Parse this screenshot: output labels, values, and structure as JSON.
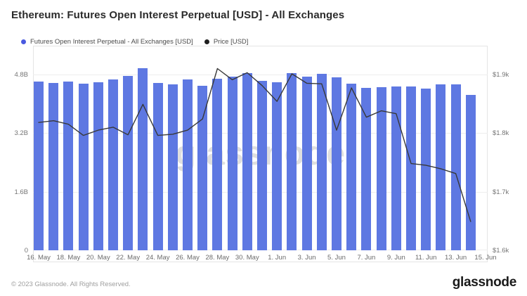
{
  "title": "Ethereum: Futures Open Interest Perpetual [USD] - All Exchanges",
  "legend": {
    "items": [
      {
        "label": "Futures Open Interest Perpetual - All Exchanges [USD]",
        "color": "#4a5ae0"
      },
      {
        "label": "Price [USD]",
        "color": "#1f1f1f"
      }
    ]
  },
  "watermark": "glassnode",
  "footer": {
    "copyright": "© 2023 Glassnode. All Rights Reserved.",
    "brand": "glassnode"
  },
  "colors": {
    "bar": "#5e78e2",
    "price_line": "#383838",
    "grid": "#ededed",
    "frame": "#e4e4e4"
  },
  "chart_data": {
    "type": "combo",
    "dates": [
      "16. May",
      "17. May",
      "18. May",
      "19. May",
      "20. May",
      "21. May",
      "22. May",
      "23. May",
      "24. May",
      "25. May",
      "26. May",
      "27. May",
      "28. May",
      "29. May",
      "30. May",
      "31. May",
      "1. Jun",
      "2. Jun",
      "3. Jun",
      "4. Jun",
      "5. Jun",
      "6. Jun",
      "7. Jun",
      "8. Jun",
      "9. Jun",
      "10. Jun",
      "11. Jun",
      "12. Jun",
      "13. Jun",
      "14. Jun"
    ],
    "series": [
      {
        "name": "Futures Open Interest Perpetual - All Exchanges [USD]",
        "type": "bar",
        "unit": "billion USD",
        "values": [
          4.62,
          4.58,
          4.62,
          4.55,
          4.6,
          4.66,
          4.77,
          4.98,
          4.58,
          4.53,
          4.66,
          4.5,
          4.69,
          4.74,
          4.85,
          4.64,
          4.6,
          4.84,
          4.74,
          4.82,
          4.72,
          4.55,
          4.43,
          4.45,
          4.48,
          4.47,
          4.42,
          4.53,
          4.54,
          4.24
        ]
      },
      {
        "name": "Price [USD]",
        "type": "line",
        "unit": "USD",
        "values": [
          1818,
          1821,
          1815,
          1796,
          1805,
          1810,
          1797,
          1849,
          1796,
          1798,
          1805,
          1824,
          1910,
          1891,
          1903,
          1881,
          1854,
          1901,
          1885,
          1884,
          1805,
          1877,
          1827,
          1838,
          1833,
          1748,
          1745,
          1739,
          1731,
          1649
        ]
      }
    ],
    "axes": {
      "left": {
        "min": 0,
        "max": 5.59,
        "ticks": [
          {
            "label": "4.8B",
            "value": 4.8
          },
          {
            "label": "3.2B",
            "value": 3.2
          },
          {
            "label": "1.6B",
            "value": 1.6
          },
          {
            "label": "0",
            "value": 0
          }
        ]
      },
      "right": {
        "min": 1600,
        "max": 1949,
        "ticks": [
          {
            "label": "$1.9k",
            "value": 1900
          },
          {
            "label": "$1.8k",
            "value": 1800
          },
          {
            "label": "$1.7k",
            "value": 1700
          },
          {
            "label": "$1.6k",
            "value": 1600
          }
        ]
      },
      "x": {
        "ticks": [
          {
            "label": "16. May",
            "index": 0
          },
          {
            "label": "18. May",
            "index": 2
          },
          {
            "label": "20. May",
            "index": 4
          },
          {
            "label": "22. May",
            "index": 6
          },
          {
            "label": "24. May",
            "index": 8
          },
          {
            "label": "26. May",
            "index": 10
          },
          {
            "label": "28. May",
            "index": 12
          },
          {
            "label": "30. May",
            "index": 14
          },
          {
            "label": "1. Jun",
            "index": 16
          },
          {
            "label": "3. Jun",
            "index": 18
          },
          {
            "label": "5. Jun",
            "index": 20
          },
          {
            "label": "7. Jun",
            "index": 22
          },
          {
            "label": "9. Jun",
            "index": 24
          },
          {
            "label": "11. Jun",
            "index": 26
          },
          {
            "label": "13. Jun",
            "index": 28
          },
          {
            "label": "15. Jun",
            "index": 30
          }
        ]
      }
    }
  }
}
